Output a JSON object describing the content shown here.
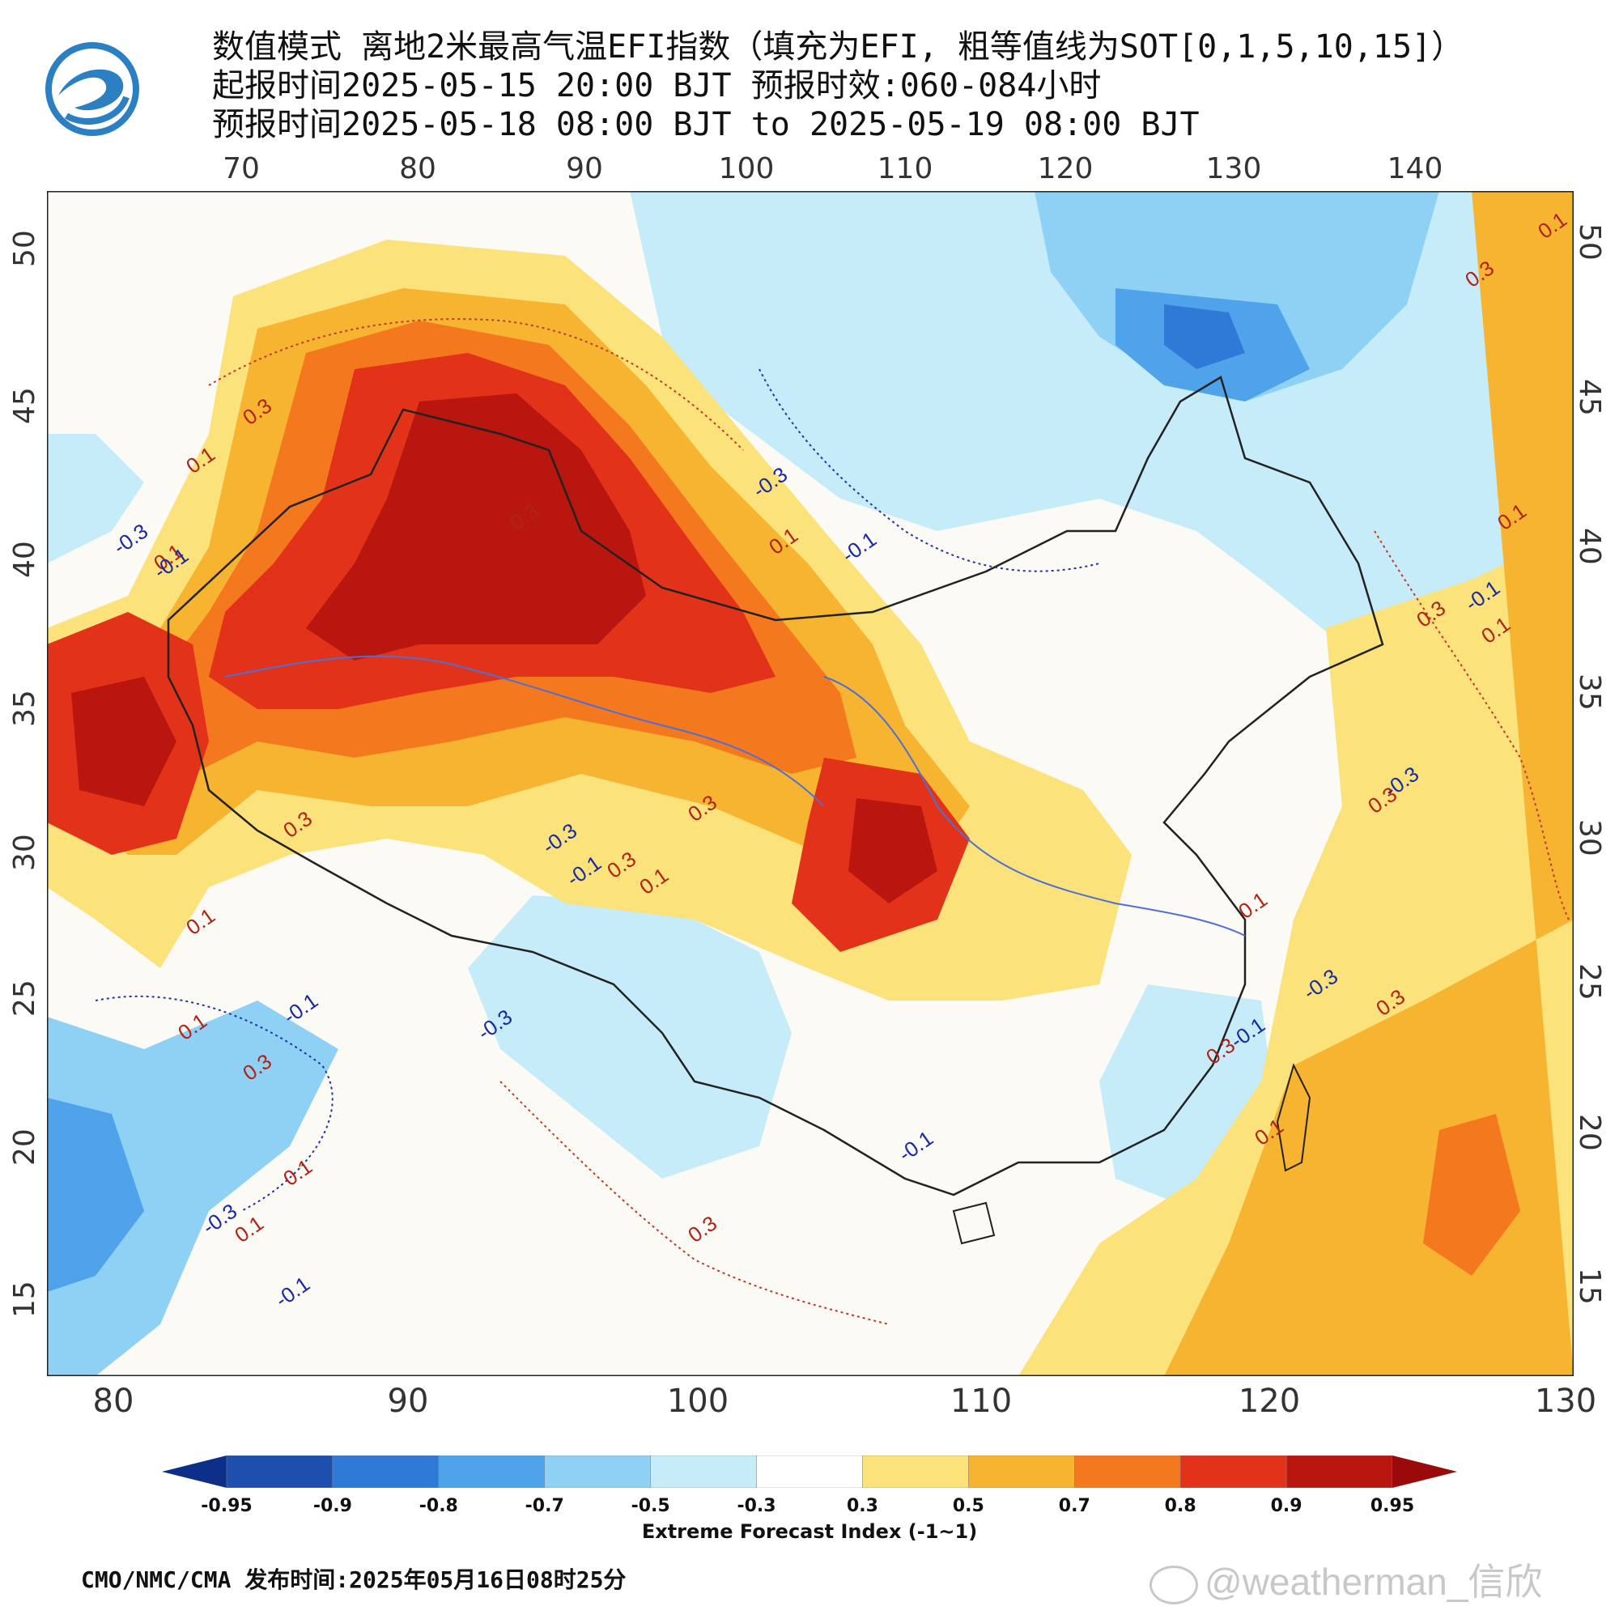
{
  "logo": {
    "name": "cma-logo"
  },
  "title": {
    "line1": "数值模式 离地2米最高气温EFI指数（填充为EFI, 粗等值线为SOT[0,1,5,10,15]）",
    "line2": "起报时间2025-05-15 20:00 BJT 预报时效:060-084小时",
    "line3": "预报时间2025-05-18 08:00 BJT to 2025-05-19 08:00 BJT"
  },
  "axes": {
    "top_lon": [
      "70",
      "80",
      "90",
      "100",
      "110",
      "120",
      "130",
      "140"
    ],
    "bottom_lon": [
      "80",
      "90",
      "100",
      "110",
      "120",
      "130"
    ],
    "left_lat": [
      "50",
      "45",
      "40",
      "35",
      "30",
      "25",
      "20",
      "15"
    ],
    "right_lat": [
      "50",
      "45",
      "40",
      "35",
      "30",
      "25",
      "20",
      "15"
    ]
  },
  "contour_labels": {
    "red": [
      "0.3",
      "0.1",
      "0.1",
      "0.3",
      "0.1",
      "0.3",
      "0.1",
      "0.1",
      "0.3",
      "0.1",
      "0.1",
      "0.3",
      "0.1",
      "0.3",
      "0.3",
      "0.1",
      "0.1",
      "0.3",
      "0.3",
      "0.1",
      "0.1",
      "0.3",
      "0.1",
      "0.3",
      "0.3"
    ],
    "blue": [
      "-0.3",
      "-0.1",
      "-0.3",
      "-0.1",
      "-0.3",
      "-0.3",
      "-0.1",
      "-0.3",
      "-0.1",
      "-0.3",
      "-0.1",
      "-0.3",
      "-0.1",
      "-0.1",
      "-0.1"
    ]
  },
  "colorbar": {
    "colors": [
      "#1c4fae",
      "#2f7ad6",
      "#4fa3ea",
      "#8fd0f5",
      "#c6ecfa",
      "#ffffff",
      "#fbe27a",
      "#f6b431",
      "#f3781e",
      "#e3321a",
      "#b8160f"
    ],
    "end_low": "#0d2f8a",
    "end_high": "#9a0a0a",
    "labels": [
      "-0.95",
      "-0.9",
      "-0.8",
      "-0.7",
      "-0.5",
      "-0.3",
      "0.3",
      "0.5",
      "0.7",
      "0.8",
      "0.9",
      "0.95"
    ],
    "title": "Extreme Forecast Index (-1~1)"
  },
  "footer": "CMO/NMC/CMA 发布时间:2025年05月16日08时25分",
  "watermark": "@weatherman_信欣"
}
